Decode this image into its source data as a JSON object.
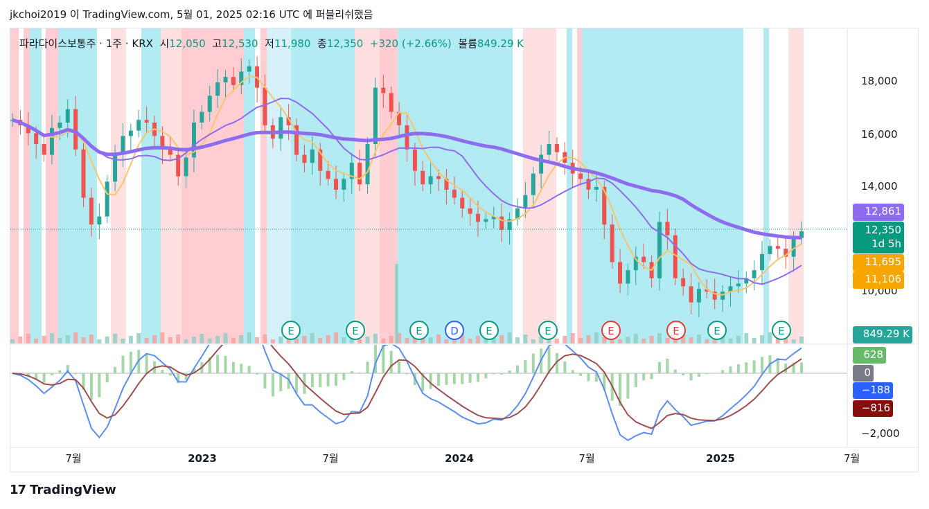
{
  "header": {
    "text": "jkchoi2019 이 TradingView.com, 5월 01, 2025 02:16 UTC 에 퍼블리쉬했음"
  },
  "legend": {
    "symbol": "파라다이스보통주 · 1주 · KRX",
    "open_label": "시",
    "open": "12,050",
    "high_label": "고",
    "high": "12,530",
    "low_label": "저",
    "low": "11,980",
    "close_label": "종",
    "close": "12,350",
    "change": "+320 (+2.66%)",
    "volume_label": "볼륨",
    "volume": "849.29 K"
  },
  "price_axis": {
    "ticks": [
      "18,000",
      "16,000",
      "14,000",
      "10,000"
    ],
    "tags": [
      {
        "text": "12,861",
        "color": "#8e6cef"
      },
      {
        "text": "12,350",
        "color": "#089981"
      },
      {
        "text": "1d 5h",
        "color": "#089981"
      },
      {
        "text": "11,695",
        "color": "#f7a600"
      },
      {
        "text": "11,106",
        "color": "#f7a600"
      },
      {
        "text": "849.29 K",
        "color": "#26a69a"
      }
    ]
  },
  "macd_axis": {
    "tick": "−2,000",
    "tags": [
      {
        "text": "628",
        "color": "#66bb6a"
      },
      {
        "text": "0",
        "color": "#787b86"
      },
      {
        "text": "−188",
        "color": "#2962ff"
      },
      {
        "text": "−816",
        "color": "#880e0e"
      }
    ]
  },
  "time_axis": {
    "labels": [
      "7월",
      "2023",
      "7월",
      "2024",
      "7월",
      "2025",
      "7월"
    ]
  },
  "event_markers": [
    "E",
    "E",
    "E",
    "D",
    "E",
    "E",
    "E",
    "E",
    "E",
    "E"
  ],
  "footer": {
    "brand": "TradingView",
    "logo": "17"
  },
  "chart_data": {
    "type": "candlestick",
    "title": "파라다이스보통주 · 1주 · KRX",
    "price_range": [
      9000,
      19500
    ],
    "last": {
      "open": 12050,
      "high": 12530,
      "low": 11980,
      "close": 12350,
      "change": 320,
      "change_pct": 2.66,
      "volume": "849.29K"
    },
    "series": [
      {
        "name": "MA long",
        "color": "#8e6cef",
        "last": 12861
      },
      {
        "name": "MA mid",
        "color": "#8e6cef",
        "last": 11695
      },
      {
        "name": "MA short",
        "color": "#f7a600",
        "last": 11106
      }
    ],
    "close_path": [
      16500,
      16300,
      16000,
      15600,
      15200,
      16200,
      16400,
      16900,
      15400,
      13600,
      12600,
      12900,
      14200,
      15200,
      15900,
      16100,
      16500,
      16400,
      15900,
      15400,
      15200,
      14400,
      15100,
      16400,
      16800,
      17400,
      17900,
      18100,
      17800,
      18300,
      18500,
      17700,
      16300,
      15800,
      16600,
      16300,
      15200,
      14900,
      15400,
      14600,
      14300,
      13900,
      14300,
      14900,
      14100,
      15600,
      17700,
      17500,
      16800,
      16300,
      15400,
      14600,
      14100,
      14400,
      14300,
      13900,
      13600,
      13200,
      13000,
      12700,
      12800,
      12900,
      12400,
      12800,
      13200,
      13700,
      14500,
      15200,
      15600,
      15300,
      14900,
      14500,
      14300,
      13900,
      14000,
      12600,
      11200,
      10400,
      10900,
      11400,
      11200,
      10600,
      12700,
      12200,
      10600,
      10300,
      9700,
      10200,
      10100,
      9800,
      10100,
      10300,
      10400,
      10600,
      10900,
      11500,
      11800,
      11700,
      11400,
      12100,
      12350
    ],
    "macd": {
      "histogram_last": 628,
      "signal_zero": 0,
      "macd_last": -188,
      "signal_last": -816,
      "range_min": -2000
    }
  }
}
